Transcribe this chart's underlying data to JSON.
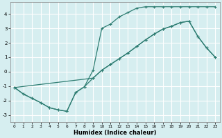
{
  "xlabel": "Humidex (Indice chaleur)",
  "bg_color": "#d6eef0",
  "grid_color": "#ffffff",
  "line_color": "#2e7d72",
  "xlim": [
    -0.5,
    23.5
  ],
  "ylim": [
    -3.5,
    4.8
  ],
  "xticks": [
    0,
    1,
    2,
    3,
    4,
    5,
    6,
    7,
    8,
    9,
    10,
    11,
    12,
    13,
    14,
    15,
    16,
    17,
    18,
    19,
    20,
    21,
    22,
    23
  ],
  "yticks": [
    -3,
    -2,
    -1,
    0,
    1,
    2,
    3,
    4
  ],
  "curve1_x": [
    0,
    1,
    2,
    3,
    4,
    5,
    6,
    7,
    8,
    9,
    10,
    11,
    12,
    13,
    14,
    15,
    16,
    17,
    18,
    19,
    20,
    21,
    22,
    23
  ],
  "curve1_y": [
    -1.1,
    -1.55,
    -1.85,
    -2.15,
    -2.5,
    -2.65,
    -2.75,
    -1.45,
    -1.05,
    -0.45,
    0.1,
    0.5,
    0.9,
    1.3,
    1.75,
    2.2,
    2.6,
    2.95,
    3.15,
    3.4,
    3.5,
    2.45,
    1.65,
    1.0
  ],
  "curve2_x": [
    0,
    1,
    2,
    3,
    4,
    5,
    6,
    7,
    8,
    9,
    10,
    11,
    12,
    13,
    14,
    15,
    16,
    17,
    18,
    19,
    20,
    21,
    22,
    23
  ],
  "curve2_y": [
    -1.1,
    -1.55,
    -1.85,
    -2.15,
    -2.5,
    -2.65,
    -2.75,
    -1.45,
    -1.05,
    0.1,
    3.0,
    3.3,
    3.8,
    4.1,
    4.4,
    4.5,
    4.5,
    4.5,
    4.5,
    4.5,
    4.5,
    4.5,
    4.5,
    4.5
  ],
  "curve3_x": [
    0,
    9,
    10,
    11,
    12,
    13,
    14,
    15,
    16,
    17,
    18,
    19,
    20,
    21,
    22,
    23
  ],
  "curve3_y": [
    -1.1,
    -0.45,
    0.1,
    0.5,
    0.9,
    1.3,
    1.75,
    2.2,
    2.6,
    2.95,
    3.15,
    3.4,
    3.5,
    2.45,
    1.65,
    1.0
  ]
}
